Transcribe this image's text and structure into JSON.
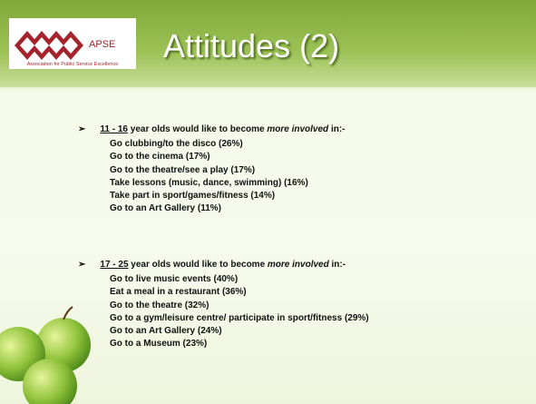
{
  "header": {
    "logo_text": "APSE",
    "logo_caption": "Association for Public Service Excellence",
    "title": "Attitudes (2)"
  },
  "sections": [
    {
      "age": "11 - 16",
      "lead": " year olds would like to become ",
      "emphasis": "more involved",
      "tail": " in:-",
      "items": [
        "Go clubbing/to the disco  (26%)",
        "Go to the cinema  (17%)",
        "Go to the theatre/see a play  (17%)",
        "Take lessons (music, dance, swimming)  (16%)",
        "Take part in sport/games/fitness  (14%)",
        "Go to an Art Gallery  (11%)"
      ]
    },
    {
      "age": "17 - 25",
      "lead": " year olds would like to become ",
      "emphasis": "more involved",
      "tail": " in:-",
      "items": [
        "Go to live music events  (40%)",
        "Eat a meal in a restaurant  (36%)",
        "Go to the theatre  (32%)",
        "Go to a gym/leisure centre/ participate in sport/fitness  (29%)",
        "Go to an Art Gallery  (24%)",
        "Go to a Museum  (23%)"
      ]
    }
  ]
}
